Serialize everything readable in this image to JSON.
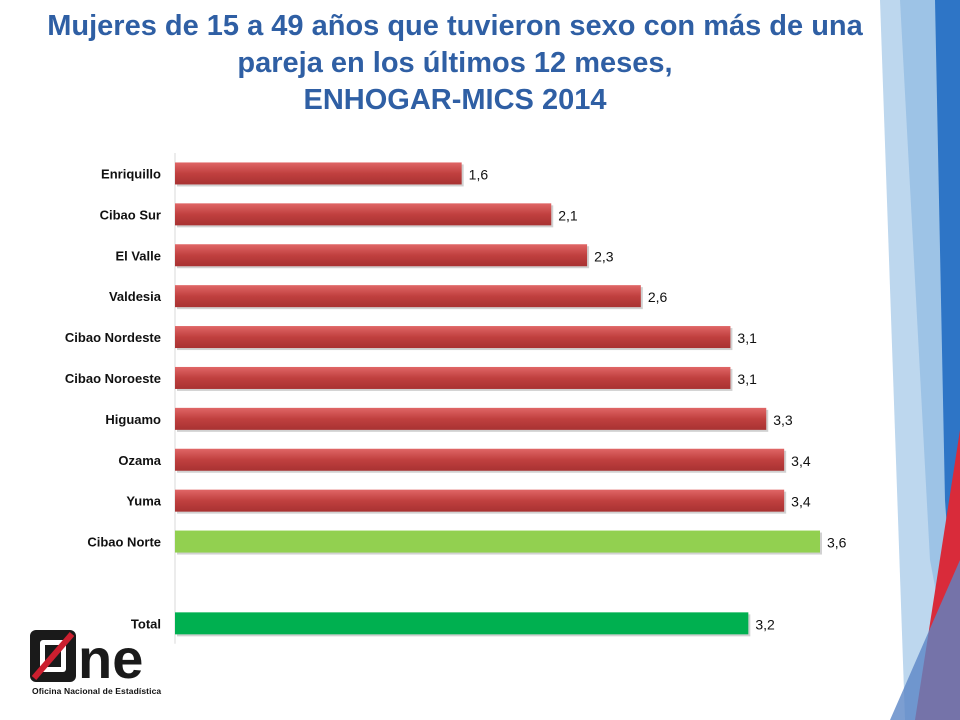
{
  "slide": {
    "title_lines": [
      "Mujeres de 15 a 49 años que tuvieron sexo con más de una",
      "pareja en los últimos 12 meses,",
      "ENHOGAR-MICS 2014"
    ]
  },
  "logo": {
    "mark_text": "ne",
    "subtitle": "Oficina Nacional de Estadística",
    "colors": {
      "red": "#cc1f2f",
      "dark": "#1a1a1a"
    }
  },
  "colors": {
    "bar_region": "#c0403f",
    "bar_highlight": "#92d050",
    "bar_total": "#00b050",
    "title": "#2f5fa4",
    "deco_blue_light": "#9dc3e6",
    "deco_blue_dark": "#2e75c6",
    "deco_red": "#d92b3a"
  },
  "chart_data": {
    "type": "bar",
    "orientation": "horizontal",
    "title": "Mujeres de 15 a 49 años que tuvieron sexo con más de una pareja en los últimos 12 meses, ENHOGAR-MICS 2014",
    "categories": [
      "Enriquillo",
      "Cibao Sur",
      "El Valle",
      "Valdesia",
      "Cibao Nordeste",
      "Cibao Noroeste",
      "Higuamo",
      "Ozama",
      "Yuma",
      "Cibao Norte",
      "",
      "Total"
    ],
    "values": [
      1.6,
      2.1,
      2.3,
      2.6,
      3.1,
      3.1,
      3.3,
      3.4,
      3.4,
      3.6,
      null,
      3.2
    ],
    "data_labels": [
      "1,6",
      "2,1",
      "2,3",
      "2,6",
      "3,1",
      "3,1",
      "3,3",
      "3,4",
      "3,4",
      "3,6",
      "",
      "3,2"
    ],
    "bar_color_keys": [
      "region",
      "region",
      "region",
      "region",
      "region",
      "region",
      "region",
      "region",
      "region",
      "highlight",
      "",
      "total"
    ],
    "xlim": [
      0,
      3.6
    ],
    "xlabel": "",
    "ylabel": "",
    "grid": false,
    "legend": "none"
  }
}
